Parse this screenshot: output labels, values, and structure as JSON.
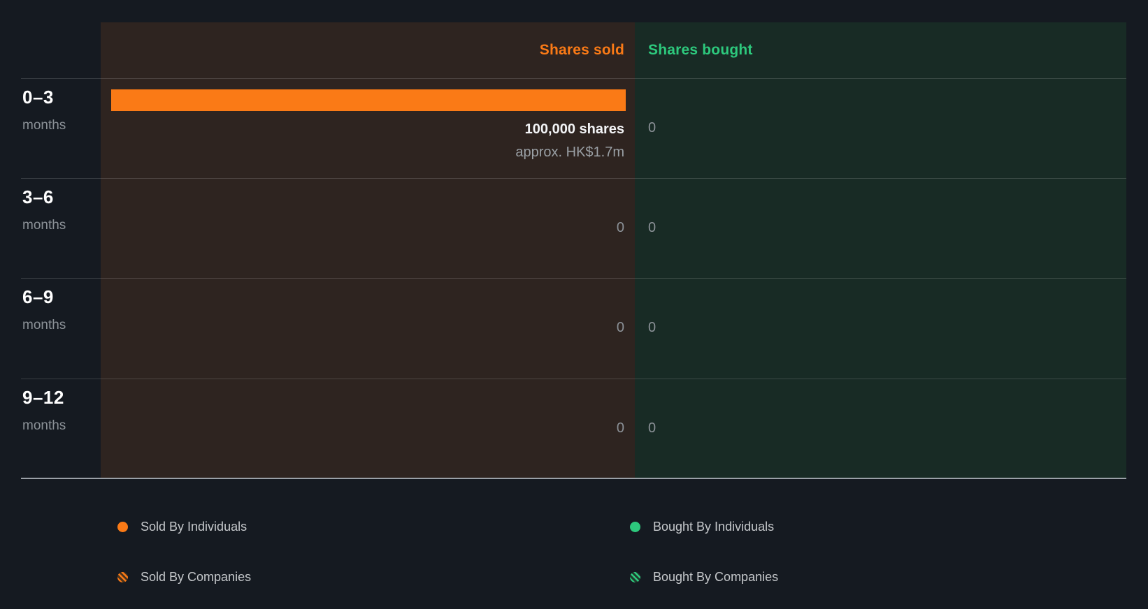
{
  "accent_colors": {
    "sold_orange": "#fa7a16",
    "bought_green": "#2dc97d",
    "sold_panel_bg": "#2e2420",
    "bought_panel_bg": "#182b25",
    "page_bg": "#151a21"
  },
  "table": {
    "sold_header": "Shares sold",
    "bought_header": "Shares bought"
  },
  "rows": [
    {
      "range": "0–3",
      "unit": "months",
      "sold_primary": "100,000 shares",
      "sold_secondary": "approx. HK$1.7m",
      "bought_value": "0"
    },
    {
      "range": "3–6",
      "unit": "months",
      "sold_value": "0",
      "bought_value": "0"
    },
    {
      "range": "6–9",
      "unit": "months",
      "sold_value": "0",
      "bought_value": "0"
    },
    {
      "range": "9–12",
      "unit": "months",
      "sold_value": "0",
      "bought_value": "0"
    }
  ],
  "legend": [
    {
      "label": "Sold By Individuals"
    },
    {
      "label": "Sold By Companies"
    },
    {
      "label": "Bought By Individuals"
    },
    {
      "label": "Bought By Companies"
    }
  ],
  "chart_data": {
    "type": "bar",
    "orientation": "horizontal",
    "title": "",
    "categories": [
      "0–3 months",
      "3–6 months",
      "6–9 months",
      "9–12 months"
    ],
    "series": [
      {
        "name": "Shares sold",
        "values": [
          100000,
          0,
          0,
          0
        ],
        "color": "#fa7a16"
      },
      {
        "name": "Shares bought",
        "values": [
          0,
          0,
          0,
          0
        ],
        "color": "#2dc97d"
      }
    ],
    "annotations": [
      {
        "category": "0–3 months",
        "series": "Shares sold",
        "label": "100,000 shares",
        "sublabel": "approx. HK$1.7m"
      }
    ],
    "xlim": [
      0,
      100000
    ],
    "grid": "horizontal-row-dividers",
    "legend_position": "bottom",
    "legend_entries": [
      "Sold By Individuals",
      "Sold By Companies",
      "Bought By Individuals",
      "Bought By Companies"
    ]
  }
}
